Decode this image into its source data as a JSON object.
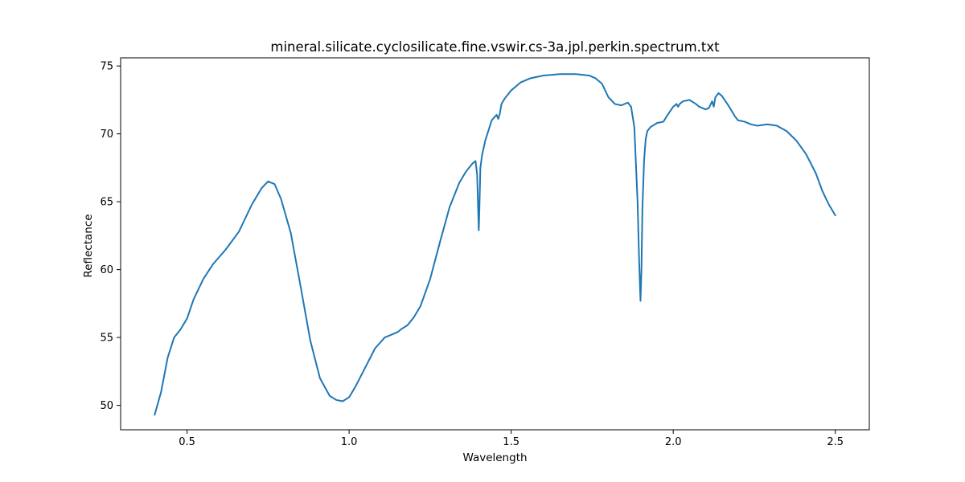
{
  "chart_data": {
    "type": "line",
    "title": "mineral.silicate.cyclosilicate.fine.vswir.cs-3a.jpl.perkin.spectrum.txt",
    "xlabel": "Wavelength",
    "ylabel": "Reflectance",
    "xlim": [
      0.295,
      2.605
    ],
    "ylim": [
      48.2,
      75.6
    ],
    "xticks": [
      0.5,
      1.0,
      1.5,
      2.0,
      2.5
    ],
    "xtick_labels": [
      "0.5",
      "1.0",
      "1.5",
      "2.0",
      "2.5"
    ],
    "yticks": [
      50,
      55,
      60,
      65,
      70,
      75
    ],
    "ytick_labels": [
      "50",
      "55",
      "60",
      "65",
      "70",
      "75"
    ],
    "grid": false,
    "legend": "none",
    "series": [
      {
        "color": "#1f77b4",
        "x": [
          0.4,
          0.42,
          0.44,
          0.46,
          0.48,
          0.5,
          0.52,
          0.55,
          0.58,
          0.62,
          0.66,
          0.7,
          0.73,
          0.75,
          0.77,
          0.79,
          0.82,
          0.85,
          0.88,
          0.91,
          0.94,
          0.96,
          0.98,
          1.0,
          1.02,
          1.05,
          1.08,
          1.11,
          1.14,
          1.15,
          1.16,
          1.18,
          1.2,
          1.22,
          1.25,
          1.28,
          1.31,
          1.34,
          1.36,
          1.38,
          1.39,
          1.395,
          1.398,
          1.4,
          1.402,
          1.405,
          1.41,
          1.42,
          1.44,
          1.455,
          1.46,
          1.465,
          1.47,
          1.48,
          1.5,
          1.53,
          1.56,
          1.6,
          1.65,
          1.7,
          1.74,
          1.76,
          1.78,
          1.8,
          1.82,
          1.84,
          1.86,
          1.87,
          1.88,
          1.89,
          1.895,
          1.899,
          1.902,
          1.905,
          1.91,
          1.915,
          1.92,
          1.93,
          1.95,
          1.97,
          1.98,
          2.0,
          2.01,
          2.015,
          2.02,
          2.03,
          2.05,
          2.07,
          2.08,
          2.1,
          2.11,
          2.12,
          2.125,
          2.13,
          2.14,
          2.15,
          2.17,
          2.19,
          2.2,
          2.22,
          2.24,
          2.26,
          2.29,
          2.32,
          2.35,
          2.38,
          2.41,
          2.44,
          2.46,
          2.48,
          2.49,
          2.5
        ],
        "values": [
          49.3,
          51.0,
          53.5,
          55.0,
          55.6,
          56.4,
          57.8,
          59.3,
          60.4,
          61.5,
          62.8,
          64.8,
          66.0,
          66.5,
          66.3,
          65.2,
          62.7,
          58.8,
          54.8,
          52.0,
          50.7,
          50.4,
          50.3,
          50.6,
          51.4,
          52.8,
          54.2,
          55.0,
          55.3,
          55.4,
          55.6,
          55.9,
          56.5,
          57.3,
          59.3,
          62.0,
          64.6,
          66.4,
          67.2,
          67.8,
          68.0,
          67.0,
          64.5,
          62.9,
          64.5,
          67.5,
          68.4,
          69.5,
          71.0,
          71.4,
          71.1,
          71.5,
          72.2,
          72.6,
          73.2,
          73.8,
          74.1,
          74.3,
          74.4,
          74.4,
          74.3,
          74.1,
          73.7,
          72.7,
          72.2,
          72.1,
          72.3,
          72.0,
          70.5,
          65.0,
          60.5,
          57.7,
          60.0,
          64.5,
          68.0,
          69.6,
          70.2,
          70.5,
          70.8,
          70.9,
          71.3,
          72.0,
          72.2,
          72.0,
          72.2,
          72.4,
          72.5,
          72.2,
          72.0,
          71.8,
          71.9,
          72.4,
          72.0,
          72.7,
          73.0,
          72.8,
          72.1,
          71.3,
          71.0,
          70.9,
          70.7,
          70.6,
          70.7,
          70.6,
          70.2,
          69.5,
          68.5,
          67.1,
          65.8,
          64.8,
          64.4,
          64.0
        ]
      }
    ]
  }
}
